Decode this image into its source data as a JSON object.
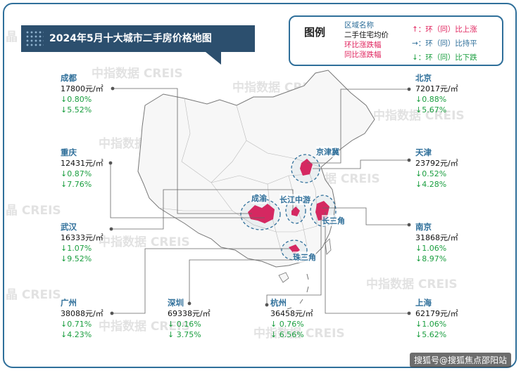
{
  "title": "2024年5月十大城市二手房价格地图",
  "legend": {
    "heading": "图例",
    "area_name": "区域名称",
    "avg_price": "二手住宅均价",
    "mom": "环比涨跌幅",
    "yoy": "同比涨跌幅",
    "up": "↑：环（同）比上涨",
    "flat": "→：环（同）比持平",
    "down": "↓：环（同）比下跌"
  },
  "regions": {
    "jjj": "京津冀",
    "cy": "成渝",
    "cjzy": "长江中游",
    "csj": "长三角",
    "zsj": "珠三角"
  },
  "cities": {
    "chengdu": {
      "name": "成都",
      "price": "17800元/㎡",
      "mom": "↓0.80%",
      "yoy": "↓5.52%"
    },
    "chongqing": {
      "name": "重庆",
      "price": "12431元/㎡",
      "mom": "↓0.87%",
      "yoy": "↓7.76%"
    },
    "wuhan": {
      "name": "武汉",
      "price": "16333元/㎡",
      "mom": "↓1.07%",
      "yoy": "↓9.52%"
    },
    "guangzhou": {
      "name": "广州",
      "price": "38088元/㎡",
      "mom": "↓0.71%",
      "yoy": "↓4.23%"
    },
    "shenzhen": {
      "name": "深圳",
      "price": "69338元/㎡",
      "mom": "↓ 0.16%",
      "yoy": "↓ 3.75%"
    },
    "hangzhou": {
      "name": "杭州",
      "price": "36458元/㎡",
      "mom": "↓ 0.76%",
      "yoy": "↓ 6.56%"
    },
    "beijing": {
      "name": "北京",
      "price": "72017元/㎡",
      "mom": "↓0.88%",
      "yoy": "↓5.67%"
    },
    "tianjin": {
      "name": "天津",
      "price": "23792元/㎡",
      "mom": "↓0.52%",
      "yoy": "↓4.28%"
    },
    "nanjing": {
      "name": "南京",
      "price": "31868元/㎡",
      "mom": "↓1.06%",
      "yoy": "↓8.97%"
    },
    "shanghai": {
      "name": "上海",
      "price": "62179元/㎡",
      "mom": "↓1.06%",
      "yoy": "↓5.62%"
    }
  },
  "watermark": {
    "cn": "中指数据",
    "en": "CREIS",
    "combo": "中指数据 CREIS",
    "side": "晶 CREIS"
  },
  "footer": "搜狐号@搜狐焦点邵阳站",
  "colors": {
    "accent": "#2f6f9a",
    "title_bg": "#2c4f6e",
    "down": "#1a9e3f",
    "up": "#e0245e",
    "region": "#e0245e"
  }
}
